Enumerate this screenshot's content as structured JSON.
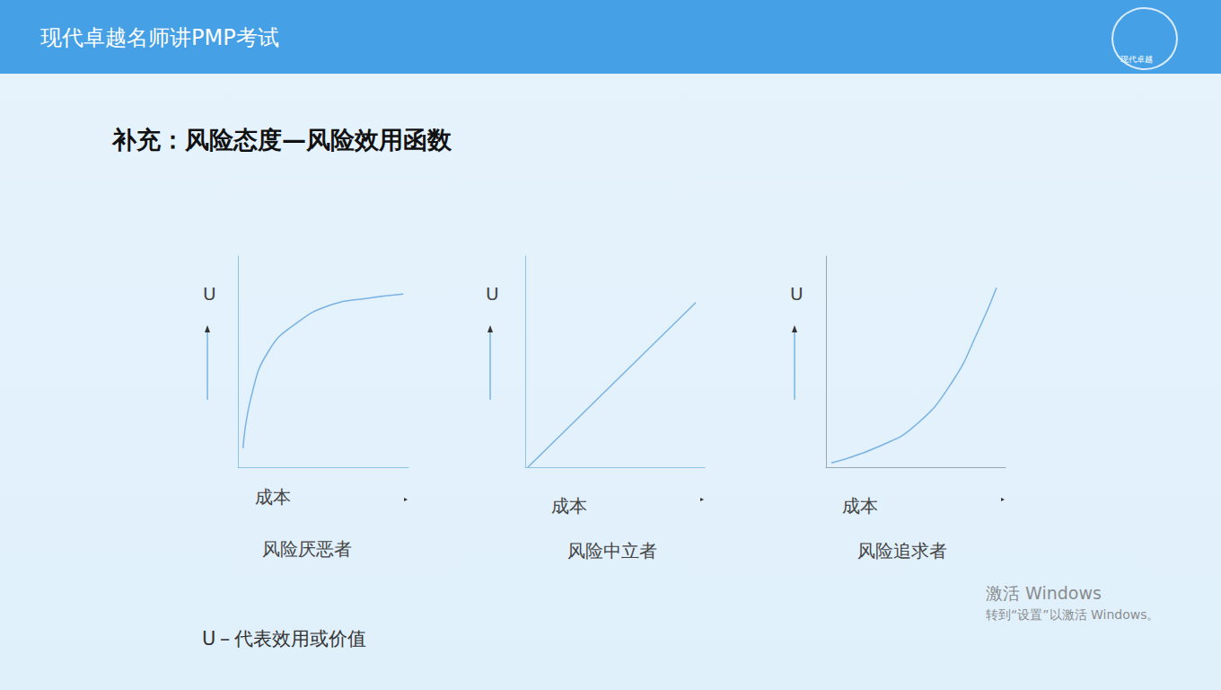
{
  "header": {
    "title": "现代卓越名师讲PMP考试",
    "logo": "现代卓越"
  },
  "title": "补充：风险态度—风险效用函数",
  "chart_data": [
    {
      "type": "line",
      "y_label": "U",
      "x_label": "成本",
      "caption": "风险厌恶者",
      "x": [
        0.3,
        0.8,
        1.8,
        3.4,
        5.5,
        7.6,
        9.7
      ],
      "values": [
        0.9,
        3.4,
        5.5,
        6.8,
        7.7,
        8.0,
        8.2
      ],
      "color": "#7ab3e3",
      "xlim": [
        0,
        10
      ],
      "ylim": [
        0,
        10
      ],
      "tick_labels": false,
      "grid": false
    },
    {
      "type": "line",
      "y_label": "U",
      "x_label": "成本",
      "caption": "风险中立者",
      "x": [
        0.15,
        9.5
      ],
      "values": [
        0,
        7.8
      ],
      "color": "#7ab3e3",
      "xlim": [
        0,
        10
      ],
      "ylim": [
        0,
        10
      ],
      "tick_labels": false,
      "grid": false
    },
    {
      "type": "line",
      "y_label": "U",
      "x_label": "成本",
      "caption": "风险追求者",
      "x": [
        0.3,
        3,
        5,
        7,
        8.5,
        9.5
      ],
      "values": [
        0.2,
        1,
        2,
        4,
        6.5,
        8.5
      ],
      "color": "#7ab3e3",
      "xlim": [
        0,
        10
      ],
      "ylim": [
        0,
        10
      ],
      "tick_labels": false,
      "grid": false
    }
  ],
  "note": "U－代表效用或价值",
  "watermark": [
    "激活 Windows",
    "转到“设置”以激活 Windows。"
  ]
}
